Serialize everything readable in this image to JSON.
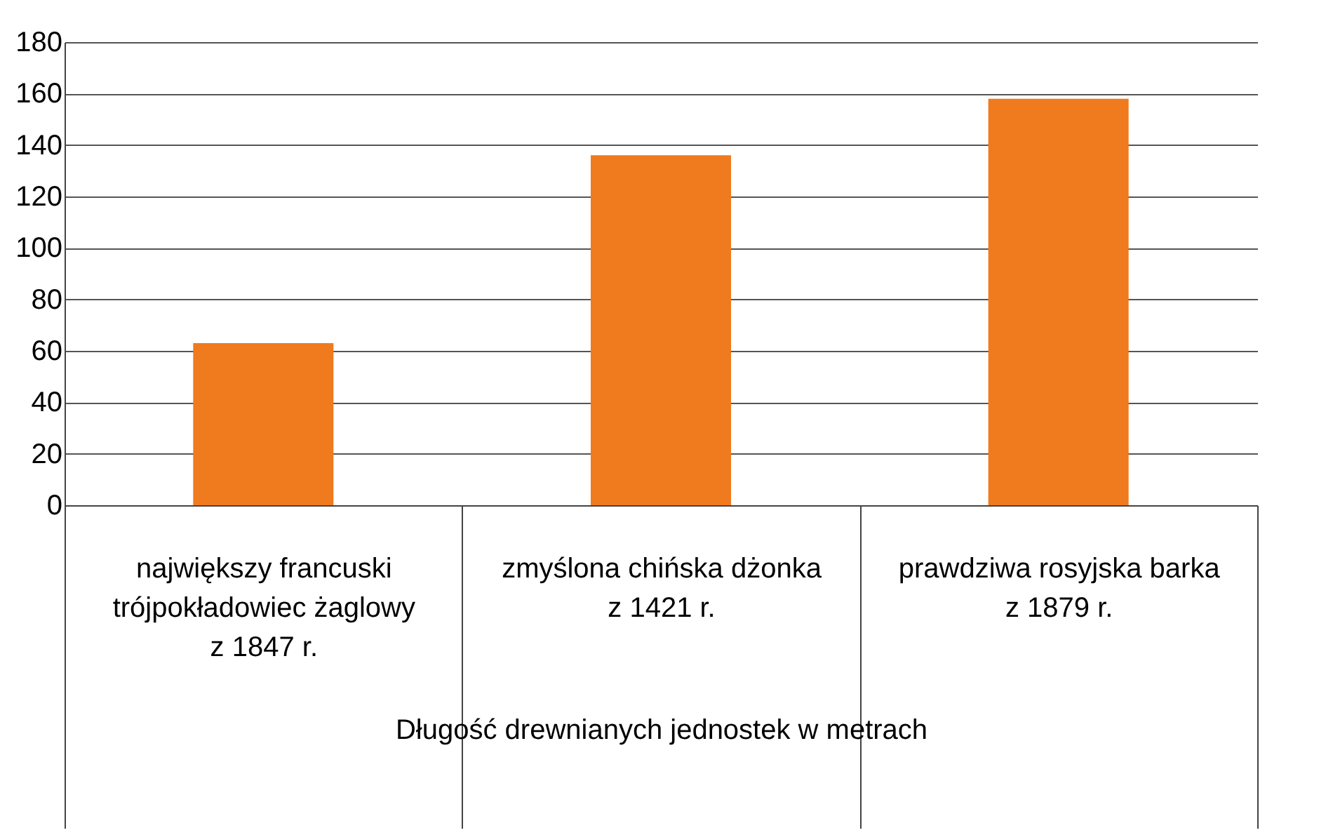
{
  "chart_data": {
    "type": "bar",
    "categories": [
      "największy francuski trójpokładowiec żaglowy z 1847 r.",
      "zmyślona chińska dżonka z 1421 r.",
      "prawdziwa rosyjska barka z 1879 r."
    ],
    "values": [
      63,
      136,
      158
    ],
    "color": "#f07a1e",
    "xlabel": "Długość drewnianych jednostek w metrach",
    "ylim": [
      0,
      180
    ],
    "yticks": [
      0,
      20,
      40,
      60,
      80,
      100,
      120,
      140,
      160,
      180
    ],
    "grid": "y"
  }
}
